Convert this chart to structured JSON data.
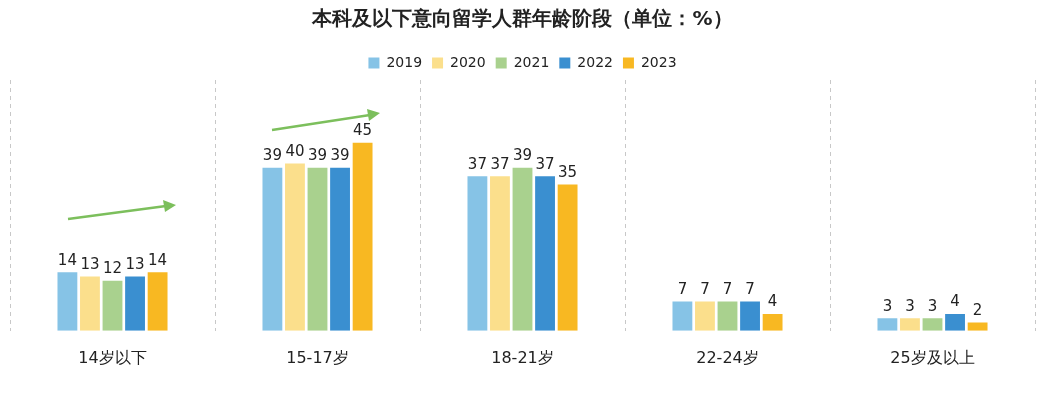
{
  "chart_data": {
    "type": "bar",
    "title": "本科及以下意向留学人群年龄阶段（单位：%）",
    "categories": [
      "14岁以下",
      "15-17岁",
      "18-21岁",
      "22-24岁",
      "25岁及以上"
    ],
    "series": [
      {
        "name": "2019",
        "color": "#86c3e6",
        "values": [
          14,
          39,
          37,
          7,
          3
        ]
      },
      {
        "name": "2020",
        "color": "#fbdf8c",
        "values": [
          13,
          40,
          37,
          7,
          3
        ]
      },
      {
        "name": "2021",
        "color": "#a9d18e",
        "values": [
          12,
          39,
          39,
          7,
          3
        ]
      },
      {
        "name": "2022",
        "color": "#3a8fd0",
        "values": [
          13,
          39,
          37,
          7,
          4
        ]
      },
      {
        "name": "2023",
        "color": "#f8b822",
        "values": [
          14,
          45,
          35,
          4,
          2
        ]
      }
    ],
    "data_labels": true,
    "legend": "top",
    "grid": "x"
  }
}
